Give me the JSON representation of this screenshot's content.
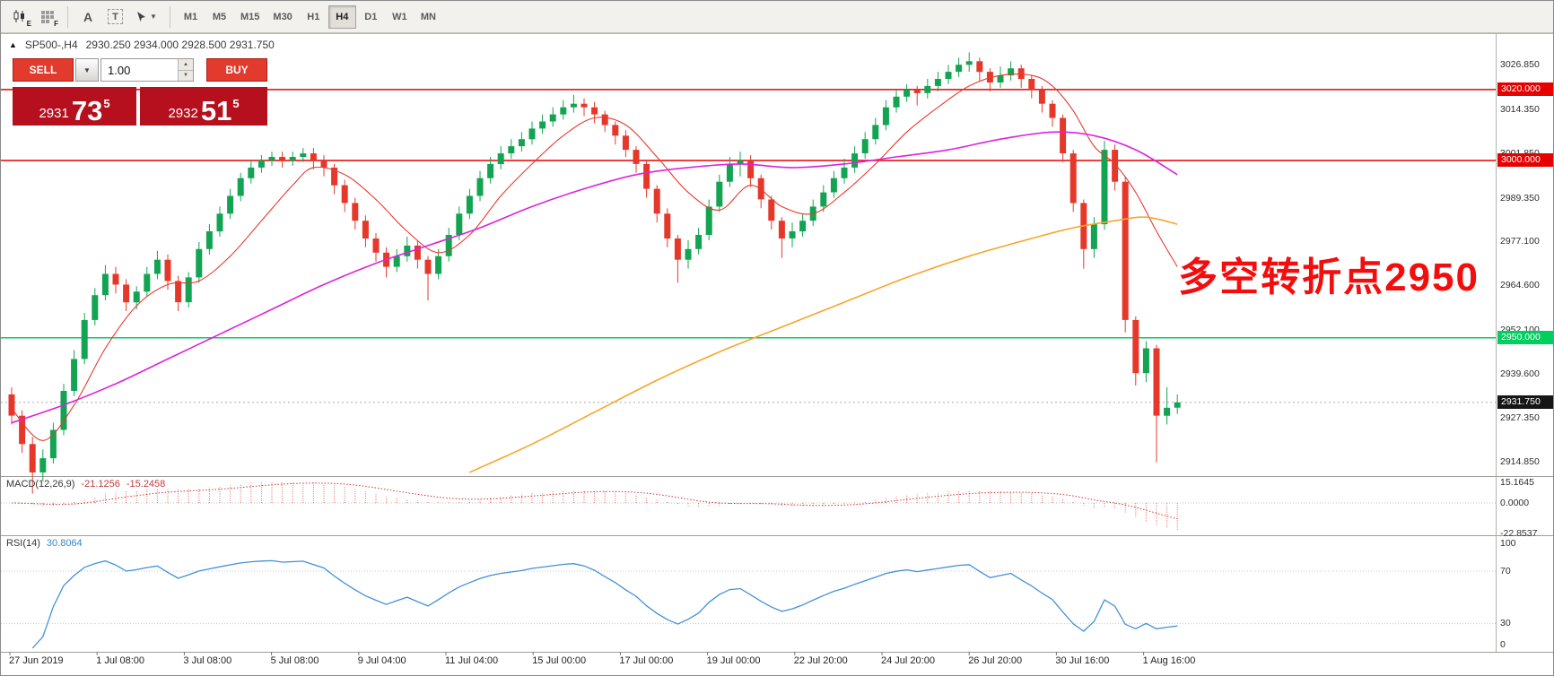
{
  "toolbar": {
    "chart_badge": "E",
    "grid_badge": "F",
    "tool_a": "A",
    "tool_t": "T",
    "timeframes": {
      "items": [
        "M1",
        "M5",
        "M15",
        "M30",
        "H1",
        "H4",
        "D1",
        "W1",
        "MN"
      ],
      "active": "H4"
    }
  },
  "chart": {
    "title_symbol": "SP500-,H4",
    "title_ohlc": "2930.250  2934.000  2928.500  2931.750",
    "annotation": "多空转折点2950"
  },
  "trade_panel": {
    "sell_label": "SELL",
    "buy_label": "BUY",
    "volume": "1.00",
    "bid": {
      "int": "2931",
      "dec": "73",
      "sup": "5"
    },
    "ask": {
      "int": "2932",
      "dec": "51",
      "sup": "5"
    }
  },
  "price_axis": {
    "labels": [
      "3026.850",
      "3014.350",
      "3001.850",
      "2989.350",
      "2977.100",
      "2964.600",
      "2952.100",
      "2939.600",
      "2927.350",
      "2914.850"
    ],
    "tags": [
      {
        "text": "3020.000",
        "color": "#e60000"
      },
      {
        "text": "3000.000",
        "color": "#e60000"
      },
      {
        "text": "2950.000",
        "color": "#00cf60"
      },
      {
        "text": "2931.750",
        "color": "#161616"
      }
    ]
  },
  "macd": {
    "label": "MACD(12,26,9)",
    "value": "-21.1256",
    "signal_value": "-15.2458",
    "axis": [
      "15.1645",
      "0.0000",
      "-22.8537"
    ]
  },
  "rsi": {
    "label": "RSI(14)",
    "value": "30.8064",
    "axis": [
      "100",
      "70",
      "30",
      "0"
    ],
    "levels": [
      70,
      30
    ]
  },
  "time_axis": {
    "labels": [
      "27 Jun 2019",
      "1 Jul 08:00",
      "3 Jul 08:00",
      "5 Jul 08:00",
      "9 Jul 04:00",
      "11 Jul 04:00",
      "15 Jul 00:00",
      "17 Jul 00:00",
      "19 Jul 00:00",
      "22 Jul 20:00",
      "24 Jul 20:00",
      "26 Jul 20:00",
      "30 Jul 16:00",
      "1 Aug 16:00"
    ]
  },
  "chart_data": {
    "type": "candlestick",
    "symbol": "SP500-",
    "timeframe": "H4",
    "current_bar": {
      "open": 2930.25,
      "high": 2934.0,
      "low": 2928.5,
      "close": 2931.75
    },
    "current_price": 2931.75,
    "price_range": [
      2911.5,
      3034.6
    ],
    "colors": {
      "up": "#12a452",
      "down": "#e5382b"
    },
    "hlines": [
      {
        "price": 3020,
        "label": "3020.000",
        "color": "#e60000"
      },
      {
        "price": 3000,
        "label": "3000.000",
        "color": "#e60000"
      },
      {
        "price": 2950,
        "label": "2950.000",
        "color": "#00cf60"
      }
    ],
    "candles": [
      [
        2934,
        2936,
        2925.5,
        2928
      ],
      [
        2928,
        2929.5,
        2917.5,
        2920
      ],
      [
        2920,
        2922,
        2906,
        2912
      ],
      [
        2912,
        2918.5,
        2909.5,
        2916
      ],
      [
        2916,
        2926,
        2914.5,
        2924
      ],
      [
        2924,
        2937,
        2922.5,
        2935
      ],
      [
        2935,
        2946.5,
        2933.5,
        2944
      ],
      [
        2944,
        2957,
        2942.5,
        2955
      ],
      [
        2955,
        2964,
        2953.5,
        2962
      ],
      [
        2962,
        2970.5,
        2960.5,
        2968
      ],
      [
        2968,
        2970,
        2962.5,
        2965
      ],
      [
        2965,
        2966.5,
        2957.5,
        2960
      ],
      [
        2960,
        2964.5,
        2958,
        2963
      ],
      [
        2963,
        2970,
        2961.5,
        2968
      ],
      [
        2968,
        2974.5,
        2966.5,
        2972
      ],
      [
        2972,
        2973.5,
        2963.5,
        2966
      ],
      [
        2966,
        2967.5,
        2957.5,
        2960
      ],
      [
        2960,
        2968.5,
        2958.5,
        2967
      ],
      [
        2967,
        2977,
        2965.5,
        2975
      ],
      [
        2975,
        2982,
        2973.5,
        2980
      ],
      [
        2980,
        2987,
        2978.5,
        2985
      ],
      [
        2985,
        2992,
        2983.5,
        2990
      ],
      [
        2990,
        2996.5,
        2988.5,
        2995
      ],
      [
        2995,
        3000,
        2993.5,
        2998
      ],
      [
        2998,
        3001.5,
        2996.5,
        3000
      ],
      [
        3000,
        3002.5,
        2998.5,
        3001
      ],
      [
        3001,
        3002.5,
        2998,
        3000
      ],
      [
        3000,
        3002.5,
        2998.5,
        3001
      ],
      [
        3001,
        3003.5,
        2999.5,
        3002
      ],
      [
        3002,
        3003.5,
        2997.5,
        3000
      ],
      [
        3000,
        3001.5,
        2995.5,
        2998
      ],
      [
        2998,
        2999,
        2990.5,
        2993
      ],
      [
        2993,
        2994.5,
        2985.5,
        2988
      ],
      [
        2988,
        2989.5,
        2980.5,
        2983
      ],
      [
        2983,
        2984.5,
        2975.5,
        2978
      ],
      [
        2978,
        2979.5,
        2971.5,
        2974
      ],
      [
        2974,
        2975.5,
        2967,
        2970
      ],
      [
        2970,
        2975,
        2968.5,
        2973
      ],
      [
        2973,
        2978.5,
        2971.5,
        2976
      ],
      [
        2976,
        2977.5,
        2969.5,
        2972
      ],
      [
        2972,
        2973,
        2960.5,
        2968
      ],
      [
        2968,
        2975,
        2966.5,
        2973
      ],
      [
        2973,
        2981,
        2971.5,
        2979
      ],
      [
        2979,
        2987,
        2977.5,
        2985
      ],
      [
        2985,
        2992,
        2983.5,
        2990
      ],
      [
        2990,
        2997,
        2988.5,
        2995
      ],
      [
        2995,
        3001,
        2993.5,
        2999
      ],
      [
        2999,
        3004,
        2997.5,
        3002
      ],
      [
        3002,
        3006,
        3000.5,
        3004
      ],
      [
        3004,
        3008,
        3002.5,
        3006
      ],
      [
        3006,
        3011,
        3004.5,
        3009
      ],
      [
        3009,
        3013,
        3007.5,
        3011
      ],
      [
        3011,
        3015,
        3009.5,
        3013
      ],
      [
        3013,
        3017,
        3011.5,
        3015
      ],
      [
        3015,
        3018.5,
        3013.5,
        3016
      ],
      [
        3016,
        3017.5,
        3012.5,
        3015
      ],
      [
        3015,
        3016.5,
        3010.5,
        3013
      ],
      [
        3013,
        3014,
        3008,
        3010
      ],
      [
        3010,
        3011,
        3004.5,
        3007
      ],
      [
        3007,
        3008.5,
        3001,
        3003
      ],
      [
        3003,
        3004,
        2996.5,
        2999
      ],
      [
        2999,
        3000,
        2989.5,
        2992
      ],
      [
        2992,
        2993,
        2982.5,
        2985
      ],
      [
        2985,
        2986.5,
        2975.5,
        2978
      ],
      [
        2978,
        2979,
        2965.5,
        2972
      ],
      [
        2972,
        2977.5,
        2969.5,
        2975
      ],
      [
        2975,
        2981,
        2973.5,
        2979
      ],
      [
        2979,
        2989,
        2977.5,
        2987
      ],
      [
        2987,
        2996,
        2985.5,
        2994
      ],
      [
        2994,
        3001,
        2992.5,
        2999
      ],
      [
        2999,
        3002.5,
        2995.5,
        3000
      ],
      [
        3000,
        3001.5,
        2992.5,
        2995
      ],
      [
        2995,
        2996,
        2986.5,
        2989
      ],
      [
        2989,
        2990,
        2980.5,
        2983
      ],
      [
        2983,
        2984,
        2972.5,
        2978
      ],
      [
        2978,
        2982.5,
        2975.5,
        2980
      ],
      [
        2980,
        2985,
        2978.5,
        2983
      ],
      [
        2983,
        2989,
        2981.5,
        2987
      ],
      [
        2987,
        2993,
        2985.5,
        2991
      ],
      [
        2991,
        2997,
        2989.5,
        2995
      ],
      [
        2995,
        3000.5,
        2993.5,
        2998
      ],
      [
        2998,
        3004,
        2996.5,
        3002
      ],
      [
        3002,
        3008,
        3000.5,
        3006
      ],
      [
        3006,
        3012,
        3004.5,
        3010
      ],
      [
        3010,
        3017,
        3008.5,
        3015
      ],
      [
        3015,
        3020,
        3013.5,
        3018
      ],
      [
        3018,
        3021.5,
        3016.5,
        3020
      ],
      [
        3020,
        3021,
        3015.5,
        3019
      ],
      [
        3019,
        3023,
        3017.5,
        3021
      ],
      [
        3021,
        3025,
        3019.5,
        3023
      ],
      [
        3023,
        3027,
        3021.5,
        3025
      ],
      [
        3025,
        3029,
        3023.5,
        3027
      ],
      [
        3027,
        3030.5,
        3025,
        3028
      ],
      [
        3028,
        3029,
        3022.5,
        3025
      ],
      [
        3025,
        3026,
        3019.5,
        3022
      ],
      [
        3022,
        3026.5,
        3020.5,
        3024
      ],
      [
        3024,
        3028,
        3022.5,
        3026
      ],
      [
        3026,
        3027,
        3020.5,
        3023
      ],
      [
        3023,
        3024,
        3017.5,
        3020
      ],
      [
        3020,
        3021,
        3013.5,
        3016
      ],
      [
        3016,
        3017,
        3009.5,
        3012
      ],
      [
        3012,
        3013,
        2999.5,
        3002
      ],
      [
        3002,
        3003,
        2985.5,
        2988
      ],
      [
        2988,
        2989,
        2969.5,
        2975
      ],
      [
        2975,
        2984,
        2972.5,
        2982
      ],
      [
        2982,
        3005.5,
        2980.5,
        3003
      ],
      [
        3003,
        3004.5,
        2991.5,
        2994
      ],
      [
        2994,
        2995.5,
        2951.5,
        2955
      ],
      [
        2955,
        2956,
        2936.5,
        2940
      ],
      [
        2940,
        2949,
        2937.5,
        2947
      ],
      [
        2947,
        2948,
        2914.85,
        2928
      ],
      [
        2928,
        2936,
        2925.5,
        2930.25
      ],
      [
        2930.25,
        2934,
        2928.5,
        2931.75
      ]
    ],
    "moving_averages": [
      {
        "name": "fast-ma",
        "color": "#e8392e",
        "width": 1.1,
        "points": [
          [
            0,
            2930
          ],
          [
            3,
            2921
          ],
          [
            6,
            2931
          ],
          [
            9,
            2947
          ],
          [
            12,
            2959
          ],
          [
            15,
            2965
          ],
          [
            18,
            2966
          ],
          [
            21,
            2973
          ],
          [
            24,
            2983
          ],
          [
            27,
            2993
          ],
          [
            29,
            2998
          ],
          [
            32,
            2996
          ],
          [
            35,
            2989
          ],
          [
            38,
            2980
          ],
          [
            41,
            2974
          ],
          [
            44,
            2979
          ],
          [
            47,
            2990
          ],
          [
            50,
            2999
          ],
          [
            53,
            3007
          ],
          [
            56,
            3012
          ],
          [
            59,
            3010
          ],
          [
            62,
            3001
          ],
          [
            65,
            2991
          ],
          [
            68,
            2986
          ],
          [
            71,
            2993
          ],
          [
            74,
            2987
          ],
          [
            77,
            2985
          ],
          [
            80,
            2991
          ],
          [
            83,
            2999
          ],
          [
            86,
            3008
          ],
          [
            89,
            3015
          ],
          [
            92,
            3021
          ],
          [
            95,
            3024
          ],
          [
            98,
            3024
          ],
          [
            100,
            3021
          ],
          [
            102,
            3014
          ],
          [
            104,
            3004
          ],
          [
            106,
            2999
          ],
          [
            108,
            2991
          ],
          [
            110,
            2980
          ],
          [
            112,
            2970
          ]
        ]
      },
      {
        "name": "slow-ma",
        "color": "#dd22dd",
        "width": 1.6,
        "points": [
          [
            0,
            2926
          ],
          [
            5,
            2931
          ],
          [
            10,
            2937
          ],
          [
            15,
            2944
          ],
          [
            20,
            2951
          ],
          [
            25,
            2958
          ],
          [
            30,
            2965
          ],
          [
            35,
            2971
          ],
          [
            40,
            2976
          ],
          [
            45,
            2981
          ],
          [
            50,
            2987
          ],
          [
            55,
            2992
          ],
          [
            60,
            2996
          ],
          [
            65,
            2998
          ],
          [
            70,
            2999
          ],
          [
            75,
            2998
          ],
          [
            80,
            2999
          ],
          [
            85,
            3001
          ],
          [
            90,
            3003
          ],
          [
            95,
            3006
          ],
          [
            100,
            3008
          ],
          [
            104,
            3007
          ],
          [
            108,
            3003
          ],
          [
            112,
            2996
          ]
        ]
      },
      {
        "name": "long-ma",
        "color": "#f7a52a",
        "width": 1.6,
        "points": [
          [
            44,
            2912
          ],
          [
            50,
            2920
          ],
          [
            56,
            2929
          ],
          [
            62,
            2938
          ],
          [
            68,
            2946
          ],
          [
            74,
            2953
          ],
          [
            80,
            2960
          ],
          [
            86,
            2967
          ],
          [
            92,
            2973
          ],
          [
            98,
            2978
          ],
          [
            102,
            2981
          ],
          [
            106,
            2983
          ],
          [
            109,
            2984
          ],
          [
            112,
            2982
          ]
        ]
      }
    ],
    "indicators": [
      {
        "name": "MACD",
        "params": "12,26,9",
        "values": [
          -21.1256,
          -15.2458
        ],
        "axis": [
          15.1645,
          0,
          -22.8537
        ]
      },
      {
        "name": "RSI",
        "params": "14",
        "value": 30.8064,
        "axis": [
          100,
          70,
          30,
          0
        ]
      }
    ]
  }
}
